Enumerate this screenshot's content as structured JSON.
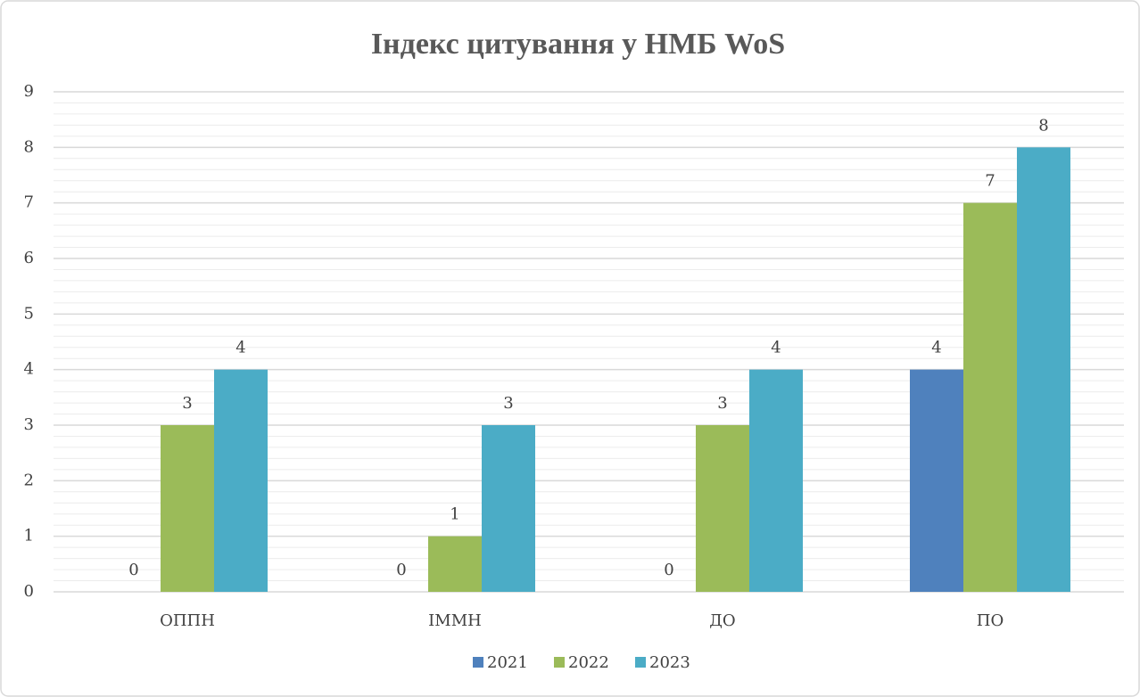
{
  "chart_data": {
    "type": "bar",
    "title": "Індекс цитування у НМБ WoS",
    "categories": [
      "ОППН",
      "ІММН",
      "ДО",
      "ПО"
    ],
    "series": [
      {
        "name": "2021",
        "color": "#4f81bd",
        "values": [
          0,
          0,
          0,
          4
        ]
      },
      {
        "name": "2022",
        "color": "#9bbb59",
        "values": [
          3,
          1,
          3,
          7
        ]
      },
      {
        "name": "2023",
        "color": "#4bacc6",
        "values": [
          4,
          3,
          4,
          8
        ]
      }
    ],
    "ylim": [
      0,
      9
    ],
    "yticks": [
      0,
      1,
      2,
      3,
      4,
      5,
      6,
      7,
      8,
      9
    ],
    "grid": true,
    "minor_grid": true,
    "data_labels": true,
    "legend": "bottom"
  }
}
